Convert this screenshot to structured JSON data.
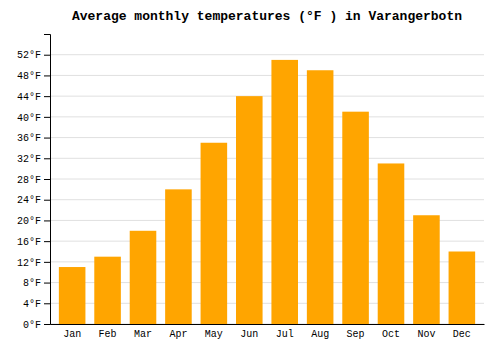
{
  "chart_data": {
    "type": "bar",
    "title": "Average monthly temperatures (°F ) in Varangerbotn",
    "categories": [
      "Jan",
      "Feb",
      "Mar",
      "Apr",
      "May",
      "Jun",
      "Jul",
      "Aug",
      "Sep",
      "Oct",
      "Nov",
      "Dec"
    ],
    "values": [
      11,
      13,
      18,
      26,
      35,
      44,
      51,
      49,
      41,
      31,
      21,
      14
    ],
    "color": "#FFA500",
    "ylim": [
      0,
      56
    ],
    "yticks": [
      {
        "value": 0,
        "label": "0°F"
      },
      {
        "value": 4,
        "label": "4°F"
      },
      {
        "value": 8,
        "label": "8°F"
      },
      {
        "value": 12,
        "label": "12°F"
      },
      {
        "value": 16,
        "label": "16°F"
      },
      {
        "value": 20,
        "label": "20°F"
      },
      {
        "value": 24,
        "label": "24°F"
      },
      {
        "value": 28,
        "label": "28°F"
      },
      {
        "value": 32,
        "label": "32°F"
      },
      {
        "value": 36,
        "label": "36°F"
      },
      {
        "value": 40,
        "label": "40°F"
      },
      {
        "value": 44,
        "label": "44°F"
      },
      {
        "value": 48,
        "label": "48°F"
      },
      {
        "value": 52,
        "label": "52°F"
      }
    ],
    "grid": true
  }
}
